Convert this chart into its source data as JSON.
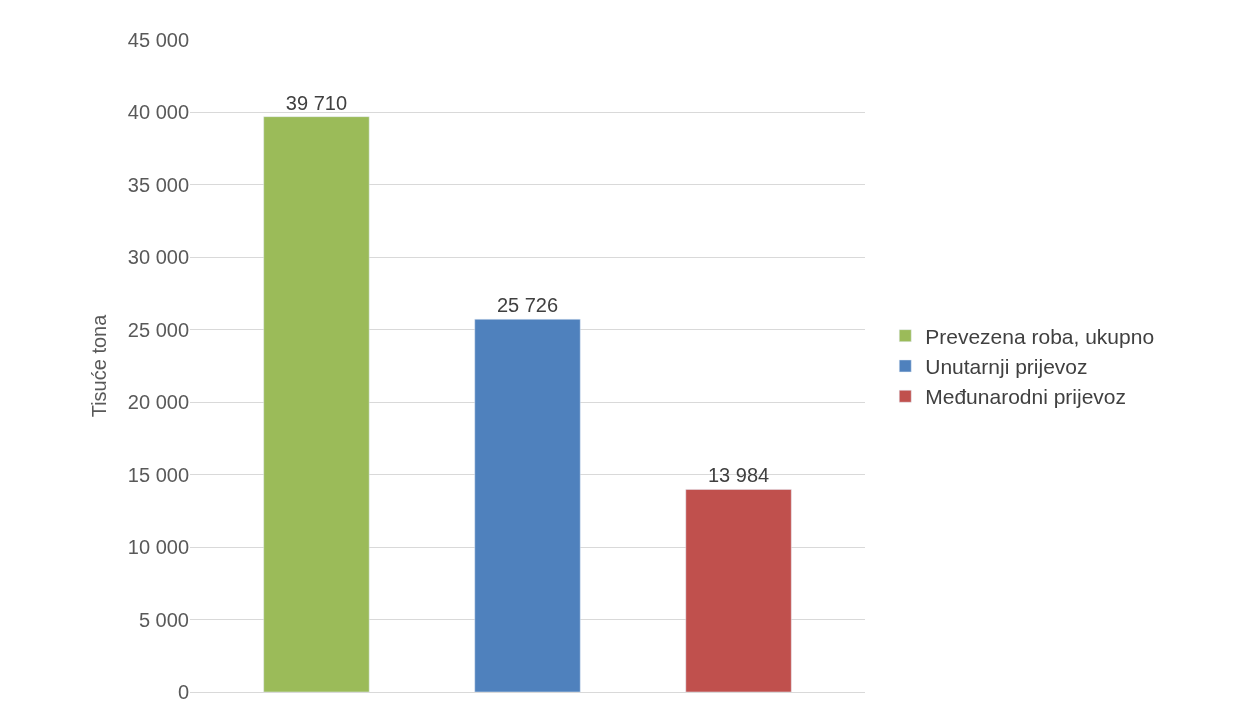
{
  "chart_data": {
    "type": "bar",
    "ylabel": "Tisuće tona",
    "categories": [
      null
    ],
    "series": [
      {
        "name": "Prevezena roba, ukupno",
        "color": "#9bbb59",
        "values": [
          39710
        ]
      },
      {
        "name": "Unutarnji prijevoz",
        "color": "#4f81bd",
        "values": [
          25726
        ]
      },
      {
        "name": "Međunarodni prijevoz",
        "color": "#c0504d",
        "values": [
          13984
        ]
      }
    ],
    "ylim": [
      0,
      45000
    ],
    "yticks": [
      {
        "value": 0,
        "label": "0"
      },
      {
        "value": 5000,
        "label": "5 000"
      },
      {
        "value": 10000,
        "label": "10 000"
      },
      {
        "value": 15000,
        "label": "15 000"
      },
      {
        "value": 20000,
        "label": "20 000"
      },
      {
        "value": 25000,
        "label": "25 000"
      },
      {
        "value": 30000,
        "label": "30 000"
      },
      {
        "value": 35000,
        "label": "35 000"
      },
      {
        "value": 40000,
        "label": "40 000"
      },
      {
        "value": 45000,
        "label": "45 000"
      }
    ],
    "data_labels": true,
    "grid": "y",
    "legend": "right",
    "tick_labels": "y"
  }
}
